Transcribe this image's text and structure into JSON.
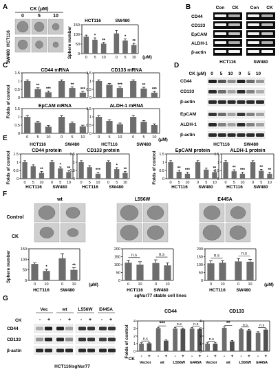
{
  "panels": {
    "A": {
      "letter": "A",
      "ck_header": "CK (μM)",
      "doses": [
        "0",
        "5",
        "10"
      ],
      "row_labels": [
        "HCT116",
        "SW480"
      ],
      "chart": {
        "ylabel": "Sphere number",
        "groups": [
          "HCT116",
          "SW480"
        ],
        "xticks": [
          "0",
          "5",
          "10",
          "0",
          "5",
          "10"
        ],
        "unit": "(μM)",
        "ylim": [
          0,
          150
        ],
        "yticks": [
          0,
          50,
          100,
          150
        ],
        "values": [
          88,
          72,
          52,
          105,
          68,
          45
        ],
        "errors": [
          8,
          10,
          6,
          15,
          8,
          8
        ],
        "stars": [
          "",
          "*",
          "**",
          "",
          "*",
          "**"
        ]
      }
    },
    "B": {
      "letter": "B",
      "col_labels": [
        "Con",
        "CK",
        "Con",
        "CK"
      ],
      "bands": [
        "CD44",
        "CD133",
        "EpCAM",
        "ALDH-1",
        "β-actin"
      ],
      "cell_lines": [
        "HCT116",
        "SW480"
      ]
    },
    "C": {
      "letter": "C",
      "ylabel": "Folds of control",
      "xticks": [
        "0",
        "5",
        "10",
        "0",
        "5",
        "10"
      ],
      "unit": "(μM)",
      "groups": [
        "HCT116",
        "SW480"
      ],
      "ylim": [
        0,
        1.5
      ],
      "yticks": [
        "0",
        "0.5",
        "1",
        "1.5"
      ],
      "charts": [
        {
          "title": "CD44 mRNA",
          "values": [
            1.0,
            0.52,
            0.32,
            1.0,
            0.58,
            0.3
          ],
          "stars": [
            "",
            "**",
            "***",
            "",
            "**",
            "***"
          ]
        },
        {
          "title": "CD133 mRNA",
          "values": [
            1.0,
            0.78,
            0.58,
            1.0,
            0.55,
            0.3
          ],
          "stars": [
            "",
            "",
            "***",
            "",
            "**",
            "***"
          ]
        },
        {
          "title": "EpCAM mRNA",
          "values": [
            1.0,
            0.65,
            0.4,
            1.0,
            0.62,
            0.42
          ],
          "stars": [
            "",
            "",
            "",
            "",
            "",
            ""
          ]
        },
        {
          "title": "ALDH-1 mRNA",
          "values": [
            1.0,
            0.75,
            0.55,
            1.0,
            0.7,
            0.5
          ],
          "stars": [
            "",
            "",
            "",
            "",
            "",
            ""
          ]
        }
      ]
    },
    "D": {
      "letter": "D",
      "ck_header": "CK (μM)",
      "doses": [
        "0",
        "5",
        "10",
        "0",
        "5",
        "10"
      ],
      "bands_top": [
        "CD44",
        "CD133",
        "β-actin"
      ],
      "bands_bottom": [
        "EpCAM",
        "ALDH-1",
        "β-actin"
      ],
      "cell_lines": [
        "HCT116",
        "SW480"
      ]
    },
    "E": {
      "letter": "E",
      "ylabel": "Folds of control",
      "xticks": [
        "0",
        "5",
        "10",
        "0",
        "5",
        "10"
      ],
      "groups": [
        "HCT116",
        "SW480"
      ],
      "ylim": [
        0,
        1.5
      ],
      "yticks": [
        "0",
        "0.5",
        "1",
        "1.5"
      ],
      "charts": [
        {
          "title": "CD44 protein",
          "values": [
            1.0,
            0.75,
            0.35,
            1.0,
            0.62,
            0.4
          ],
          "stars": [
            "",
            "",
            "**",
            "",
            "*",
            "**"
          ]
        },
        {
          "title": "CD133 protein",
          "values": [
            1.0,
            0.7,
            0.3,
            1.0,
            0.58,
            0.35
          ],
          "stars": [
            "",
            "",
            "***",
            "",
            "*",
            "**"
          ]
        },
        {
          "title": "EpCAM protein",
          "values": [
            1.0,
            0.42,
            0.3,
            1.0,
            0.55,
            0.4
          ],
          "stars": [
            "",
            "**",
            "***",
            "",
            "",
            "**"
          ]
        },
        {
          "title": "ALDH-1 protein",
          "values": [
            1.0,
            0.45,
            0.3,
            1.0,
            0.48,
            0.3
          ],
          "stars": [
            "",
            "**",
            "***",
            "",
            "**",
            "**"
          ]
        }
      ]
    },
    "F": {
      "letter": "F",
      "col_titles": [
        "wt",
        "L556W",
        "E445A"
      ],
      "row_labels": [
        "Control",
        "CK"
      ],
      "ylabel": "Sphere number",
      "xticks": [
        "0",
        "10",
        "0",
        "10"
      ],
      "groups": [
        "HCT116",
        "SW480"
      ],
      "unit": "(μM)",
      "footer": "sgNur77 stable cell lines",
      "charts": [
        {
          "ylim": [
            0,
            150
          ],
          "yticks": [
            "0",
            "50",
            "100",
            "150"
          ],
          "values": [
            78,
            45,
            105,
            50
          ],
          "errors": [
            5,
            8,
            22,
            10
          ],
          "stars": [
            "",
            "*",
            "",
            "**"
          ],
          "ns": []
        },
        {
          "ylim": [
            0,
            200
          ],
          "yticks": [
            "0",
            "50",
            "100",
            "150",
            "200"
          ],
          "values": [
            112,
            100,
            110,
            95
          ],
          "errors": [
            15,
            18,
            20,
            15
          ],
          "stars": [
            "",
            "",
            "",
            ""
          ],
          "ns": [
            "n.s",
            "n.s"
          ]
        },
        {
          "ylim": [
            0,
            200
          ],
          "yticks": [
            "0",
            "50",
            "100",
            "150",
            "200"
          ],
          "values": [
            108,
            112,
            120,
            118
          ],
          "errors": [
            15,
            12,
            18,
            15
          ],
          "stars": [
            "",
            "",
            "",
            ""
          ],
          "ns": [
            "n.s",
            "n.s"
          ]
        }
      ]
    },
    "G": {
      "letter": "G",
      "ck_label": "CK",
      "lane_groups": [
        "Vec",
        "wt",
        "L556W",
        "E445A"
      ],
      "lane_signs": [
        "-",
        "+",
        "-",
        "+",
        "-",
        "+",
        "-",
        "+"
      ],
      "bands": [
        "CD44",
        "CD133",
        "β-actin"
      ],
      "blot_caption": "HCT116/sgNur77",
      "ylabel": "Folds of control",
      "charts": [
        {
          "title": "CD44",
          "ylim": [
            0,
            4
          ],
          "yticks": [
            "0",
            "1",
            "2",
            "3",
            "4"
          ],
          "values": [
            1.0,
            1.05,
            3.05,
            1.4,
            3.0,
            2.95,
            3.0,
            2.9
          ],
          "sig": [
            "n.s",
            "***",
            "n.s",
            "n.s"
          ]
        },
        {
          "title": "CD133",
          "ylim": [
            0,
            4
          ],
          "yticks": [
            "0",
            "1",
            "2",
            "3",
            "4"
          ],
          "values": [
            1.0,
            1.0,
            3.1,
            1.3,
            2.9,
            2.75,
            2.45,
            2.85
          ],
          "sig": [
            "n.s",
            "**",
            "n.s",
            "n.s"
          ]
        }
      ],
      "group_labels": [
        "Vector",
        "wt",
        "L556W",
        "E445A"
      ],
      "ck_row": "CK",
      "signs": [
        "-",
        "+",
        "-",
        "+",
        "-",
        "+",
        "-",
        "+"
      ]
    }
  },
  "colors": {
    "bar": "#6d6d6d",
    "bar_dark": "#505050",
    "band": "#141414",
    "blot_bg": "#efefef"
  }
}
